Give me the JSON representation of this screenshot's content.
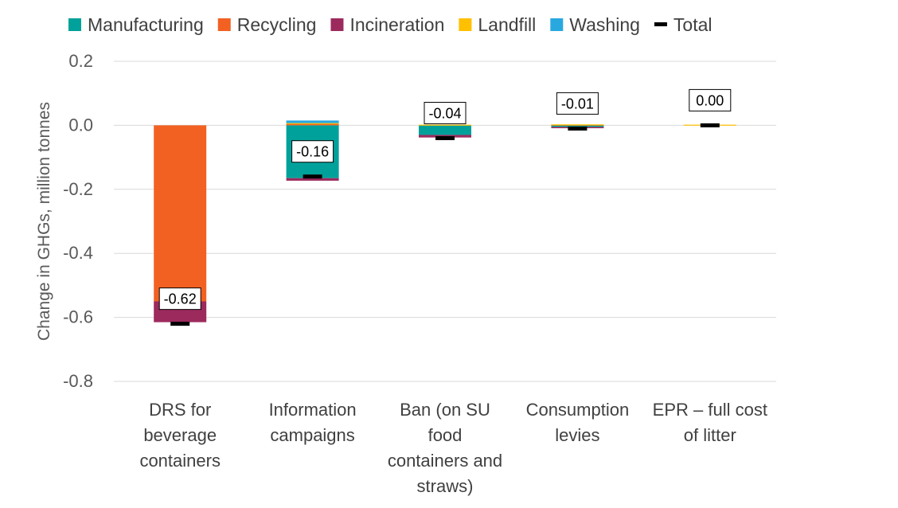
{
  "chart_data": {
    "type": "bar",
    "stacked": true,
    "ylabel": "Change in GHGs, million tonnes",
    "ylim": [
      -0.8,
      0.2
    ],
    "yticks": [
      "0.2",
      "0.0",
      "-0.2",
      "-0.4",
      "-0.6",
      "-0.8"
    ],
    "ytick_values": [
      0.2,
      0.0,
      -0.2,
      -0.4,
      -0.6,
      -0.8
    ],
    "grid": true,
    "legend_position": "top",
    "categories": [
      [
        "DRS for",
        "beverage",
        "containers"
      ],
      [
        "Information",
        "campaigns"
      ],
      [
        "Ban (on SU",
        "food",
        "containers and",
        "straws)"
      ],
      [
        "Consumption",
        "levies"
      ],
      [
        "EPR – full cost",
        "of litter"
      ]
    ],
    "series": [
      {
        "name": "Manufacturing",
        "color": "#00A19A",
        "values": [
          0.0,
          -0.165,
          -0.03,
          -0.005,
          0.0
        ]
      },
      {
        "name": "Recycling",
        "color": "#F26122",
        "values": [
          -0.55,
          0.005,
          0.0,
          0.002,
          0.0
        ]
      },
      {
        "name": "Incineration",
        "color": "#9C2A5D",
        "values": [
          -0.065,
          -0.008,
          -0.008,
          -0.004,
          0.0
        ]
      },
      {
        "name": "Landfill",
        "color": "#FFC000",
        "values": [
          0.0,
          0.002,
          0.002,
          0.001,
          0.002
        ]
      },
      {
        "name": "Washing",
        "color": "#29A8E0",
        "values": [
          0.0,
          0.008,
          0.0,
          0.0,
          0.0
        ]
      }
    ],
    "total": {
      "name": "Total",
      "color": "#000000",
      "values": [
        -0.62,
        -0.16,
        -0.04,
        -0.01,
        0.0
      ],
      "labels": [
        "-0.62",
        "-0.16",
        "-0.04",
        "-0.01",
        "0.00"
      ]
    }
  }
}
